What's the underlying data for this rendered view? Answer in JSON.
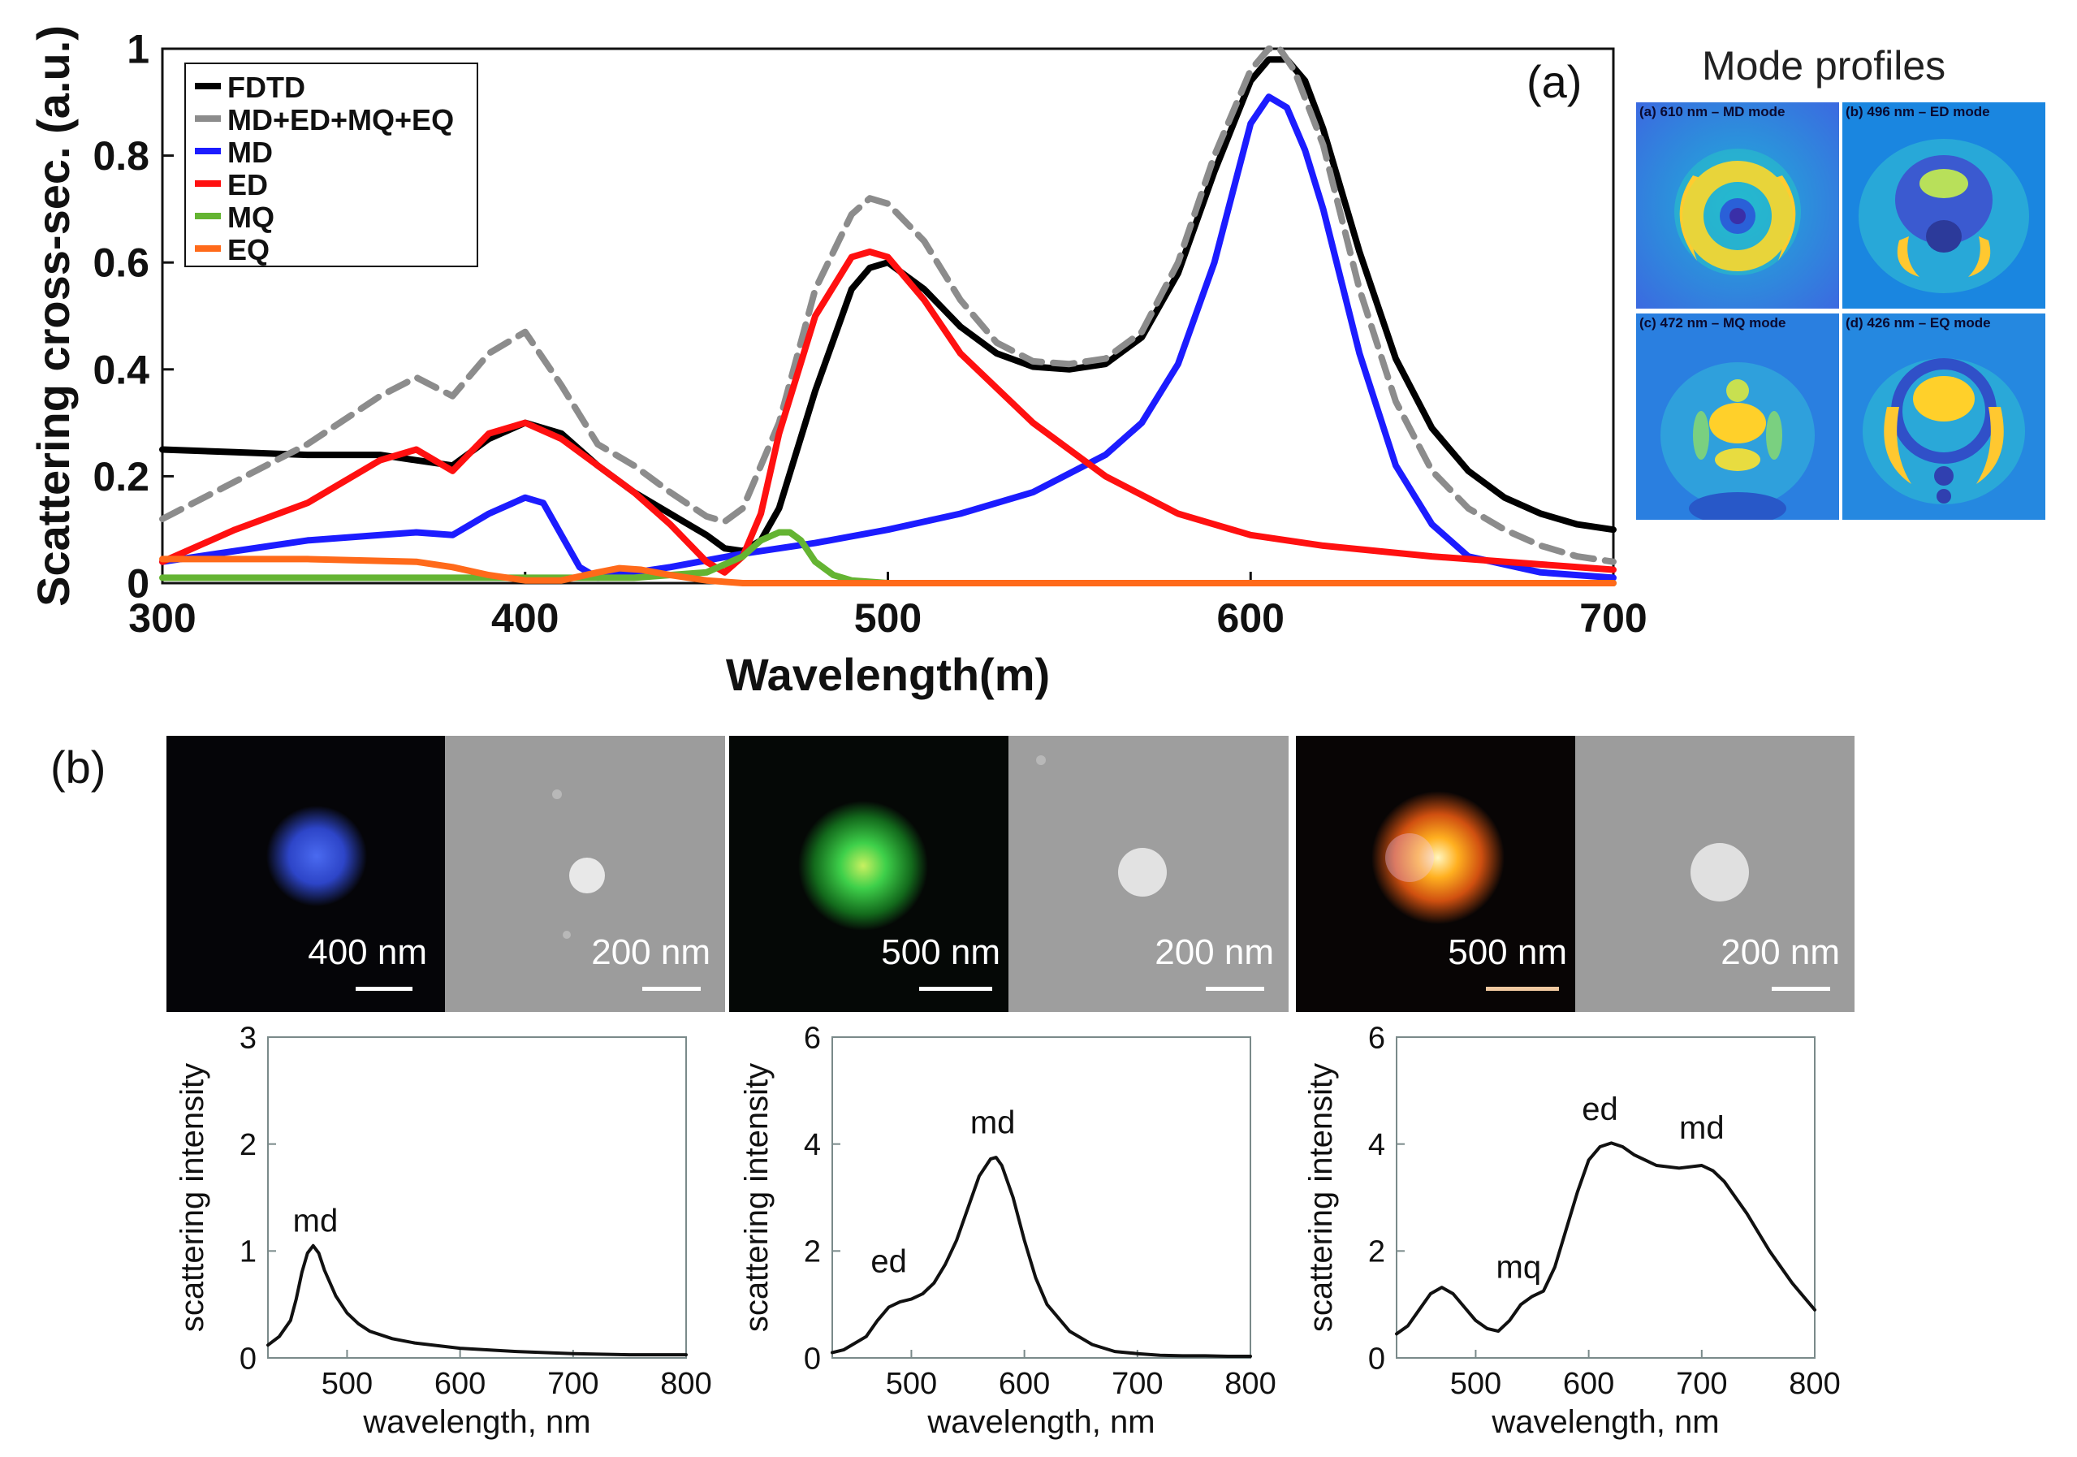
{
  "chart_data": [
    {
      "type": "line",
      "panel": "(a)",
      "xlabel": "Wavelength(m)",
      "ylabel": "Scattering cross-sec. (a.u.)",
      "xlim": [
        300,
        700
      ],
      "ylim": [
        0,
        1
      ],
      "xticks": [
        "300",
        "400",
        "500",
        "600",
        "700"
      ],
      "yticks": [
        "0",
        "0.2",
        "0.4",
        "0.6",
        "0.8",
        "1"
      ],
      "legend_position": "top-left",
      "series": [
        {
          "name": "FDTD",
          "color": "#000000",
          "dash": "solid",
          "x": [
            300,
            320,
            340,
            360,
            370,
            380,
            390,
            400,
            410,
            420,
            430,
            440,
            450,
            455,
            460,
            465,
            470,
            480,
            490,
            495,
            500,
            510,
            520,
            530,
            540,
            550,
            560,
            570,
            580,
            590,
            600,
            605,
            610,
            615,
            620,
            630,
            640,
            650,
            660,
            670,
            680,
            690,
            700
          ],
          "y": [
            0.25,
            0.245,
            0.24,
            0.24,
            0.23,
            0.22,
            0.27,
            0.3,
            0.28,
            0.22,
            0.17,
            0.13,
            0.09,
            0.065,
            0.06,
            0.08,
            0.14,
            0.36,
            0.55,
            0.59,
            0.6,
            0.55,
            0.48,
            0.43,
            0.405,
            0.4,
            0.41,
            0.46,
            0.58,
            0.77,
            0.94,
            0.98,
            0.98,
            0.94,
            0.85,
            0.62,
            0.42,
            0.29,
            0.21,
            0.16,
            0.13,
            0.11,
            0.1
          ]
        },
        {
          "name": "MD+ED+MQ+EQ",
          "color": "#8c8c8c",
          "dash": "dashed",
          "x": [
            300,
            320,
            340,
            360,
            370,
            380,
            390,
            400,
            410,
            420,
            430,
            440,
            450,
            455,
            460,
            470,
            480,
            490,
            495,
            500,
            510,
            520,
            530,
            540,
            550,
            560,
            570,
            580,
            590,
            600,
            605,
            608,
            612,
            620,
            630,
            640,
            650,
            660,
            670,
            680,
            690,
            700
          ],
          "y": [
            0.12,
            0.19,
            0.26,
            0.35,
            0.385,
            0.35,
            0.43,
            0.47,
            0.37,
            0.26,
            0.22,
            0.17,
            0.125,
            0.115,
            0.14,
            0.3,
            0.55,
            0.69,
            0.72,
            0.71,
            0.64,
            0.53,
            0.45,
            0.415,
            0.41,
            0.42,
            0.47,
            0.6,
            0.8,
            0.96,
            1.0,
            1.0,
            0.96,
            0.82,
            0.55,
            0.34,
            0.21,
            0.14,
            0.1,
            0.07,
            0.05,
            0.04
          ]
        },
        {
          "name": "MD",
          "color": "#1c1cff",
          "dash": "solid",
          "x": [
            300,
            320,
            340,
            360,
            370,
            380,
            390,
            400,
            405,
            410,
            415,
            420,
            430,
            440,
            460,
            480,
            500,
            520,
            540,
            560,
            570,
            580,
            590,
            595,
            600,
            605,
            610,
            615,
            620,
            630,
            640,
            650,
            660,
            680,
            700
          ],
          "y": [
            0.04,
            0.06,
            0.08,
            0.09,
            0.095,
            0.09,
            0.13,
            0.16,
            0.15,
            0.09,
            0.03,
            0.01,
            0.02,
            0.03,
            0.055,
            0.075,
            0.1,
            0.13,
            0.17,
            0.24,
            0.3,
            0.41,
            0.6,
            0.73,
            0.86,
            0.91,
            0.89,
            0.81,
            0.7,
            0.43,
            0.22,
            0.11,
            0.05,
            0.02,
            0.01
          ]
        },
        {
          "name": "ED",
          "color": "#ff1010",
          "dash": "solid",
          "x": [
            300,
            320,
            340,
            360,
            370,
            380,
            390,
            400,
            410,
            420,
            430,
            440,
            450,
            455,
            460,
            465,
            470,
            480,
            490,
            495,
            500,
            510,
            520,
            540,
            560,
            580,
            600,
            620,
            650,
            700
          ],
          "y": [
            0.04,
            0.1,
            0.15,
            0.23,
            0.25,
            0.21,
            0.28,
            0.3,
            0.27,
            0.22,
            0.17,
            0.11,
            0.04,
            0.02,
            0.05,
            0.13,
            0.28,
            0.5,
            0.61,
            0.62,
            0.61,
            0.53,
            0.43,
            0.3,
            0.2,
            0.13,
            0.09,
            0.07,
            0.05,
            0.025
          ]
        },
        {
          "name": "MQ",
          "color": "#64b432",
          "dash": "solid",
          "x": [
            300,
            350,
            400,
            430,
            450,
            460,
            465,
            470,
            473,
            476,
            480,
            485,
            490,
            500,
            550,
            700
          ],
          "y": [
            0.01,
            0.01,
            0.01,
            0.01,
            0.02,
            0.05,
            0.08,
            0.095,
            0.095,
            0.08,
            0.04,
            0.015,
            0.005,
            0.0,
            0.0,
            0.0
          ]
        },
        {
          "name": "EQ",
          "color": "#ff6a1a",
          "dash": "solid",
          "x": [
            300,
            340,
            370,
            380,
            390,
            400,
            410,
            420,
            426,
            432,
            440,
            450,
            460,
            500,
            700
          ],
          "y": [
            0.045,
            0.045,
            0.04,
            0.03,
            0.015,
            0.005,
            0.005,
            0.02,
            0.028,
            0.025,
            0.015,
            0.005,
            0.0,
            0.0,
            0.0
          ]
        }
      ]
    },
    {
      "type": "line",
      "panel": "(b)-1",
      "xlabel": "wavelength, nm",
      "ylabel": "scattering intensity",
      "xlim": [
        430,
        800
      ],
      "ylim": [
        0,
        3
      ],
      "xticks": [
        "500",
        "600",
        "700",
        "800"
      ],
      "yticks": [
        "0",
        "1",
        "2",
        "3"
      ],
      "annotations": [
        {
          "text": "md",
          "x": 472,
          "y": 1.18
        }
      ],
      "series": [
        {
          "name": "spectrum",
          "color": "#111111",
          "x": [
            430,
            440,
            450,
            455,
            460,
            465,
            470,
            475,
            480,
            490,
            500,
            510,
            520,
            540,
            560,
            600,
            650,
            700,
            750,
            800
          ],
          "y": [
            0.12,
            0.2,
            0.35,
            0.55,
            0.8,
            0.98,
            1.05,
            0.98,
            0.82,
            0.58,
            0.42,
            0.32,
            0.25,
            0.18,
            0.14,
            0.09,
            0.06,
            0.04,
            0.03,
            0.03
          ]
        }
      ]
    },
    {
      "type": "line",
      "panel": "(b)-2",
      "xlabel": "wavelength, nm",
      "ylabel": "scattering intensity",
      "xlim": [
        430,
        800
      ],
      "ylim": [
        0,
        6
      ],
      "xticks": [
        "500",
        "600",
        "700",
        "800"
      ],
      "yticks": [
        "0",
        "2",
        "4",
        "6"
      ],
      "annotations": [
        {
          "text": "ed",
          "x": 480,
          "y": 1.6
        },
        {
          "text": "md",
          "x": 572,
          "y": 4.2
        }
      ],
      "series": [
        {
          "name": "spectrum",
          "color": "#111111",
          "x": [
            430,
            440,
            460,
            470,
            480,
            490,
            500,
            510,
            520,
            530,
            540,
            550,
            560,
            570,
            575,
            580,
            590,
            600,
            610,
            620,
            640,
            660,
            680,
            700,
            720,
            740,
            760,
            780,
            800
          ],
          "y": [
            0.1,
            0.15,
            0.4,
            0.7,
            0.95,
            1.05,
            1.1,
            1.2,
            1.4,
            1.75,
            2.2,
            2.8,
            3.4,
            3.72,
            3.75,
            3.6,
            3.0,
            2.2,
            1.5,
            1.0,
            0.5,
            0.25,
            0.12,
            0.08,
            0.05,
            0.04,
            0.04,
            0.03,
            0.03
          ]
        }
      ]
    },
    {
      "type": "line",
      "panel": "(b)-3",
      "xlabel": "wavelength, nm",
      "ylabel": "scattering intensity",
      "xlim": [
        430,
        800
      ],
      "ylim": [
        0,
        6
      ],
      "xticks": [
        "500",
        "600",
        "700",
        "800"
      ],
      "yticks": [
        "0",
        "2",
        "4",
        "6"
      ],
      "annotations": [
        {
          "text": "mq",
          "x": 538,
          "y": 1.5
        },
        {
          "text": "ed",
          "x": 610,
          "y": 4.45
        },
        {
          "text": "md",
          "x": 700,
          "y": 4.1
        }
      ],
      "series": [
        {
          "name": "spectrum",
          "color": "#111111",
          "x": [
            430,
            440,
            450,
            460,
            470,
            480,
            490,
            500,
            510,
            520,
            530,
            540,
            550,
            560,
            570,
            580,
            590,
            600,
            610,
            620,
            630,
            640,
            660,
            680,
            700,
            710,
            720,
            740,
            760,
            780,
            800
          ],
          "y": [
            0.45,
            0.6,
            0.9,
            1.2,
            1.32,
            1.2,
            0.95,
            0.7,
            0.55,
            0.5,
            0.7,
            1.0,
            1.15,
            1.25,
            1.7,
            2.4,
            3.1,
            3.7,
            3.95,
            4.02,
            3.95,
            3.8,
            3.6,
            3.55,
            3.6,
            3.5,
            3.3,
            2.7,
            2.0,
            1.4,
            0.9
          ]
        }
      ]
    }
  ],
  "panel_labels": {
    "a": "(a)",
    "b": "(b)"
  },
  "mode_profiles": {
    "title": "Mode profiles",
    "captions": [
      "(a) 610 nm – MD mode",
      "(b) 496 nm – ED mode",
      "(c) 472 nm – MQ mode",
      "(d) 426 nm – EQ mode"
    ]
  },
  "micrographs": [
    {
      "dark_scale": "400 nm",
      "sem_scale": "200 nm",
      "spot_color": "#2e4fd8"
    },
    {
      "dark_scale": "500 nm",
      "sem_scale": "200 nm",
      "spot_color": "#3ed04a"
    },
    {
      "dark_scale": "500 nm",
      "sem_scale": "200 nm",
      "spot_color": "#ffa020"
    }
  ]
}
